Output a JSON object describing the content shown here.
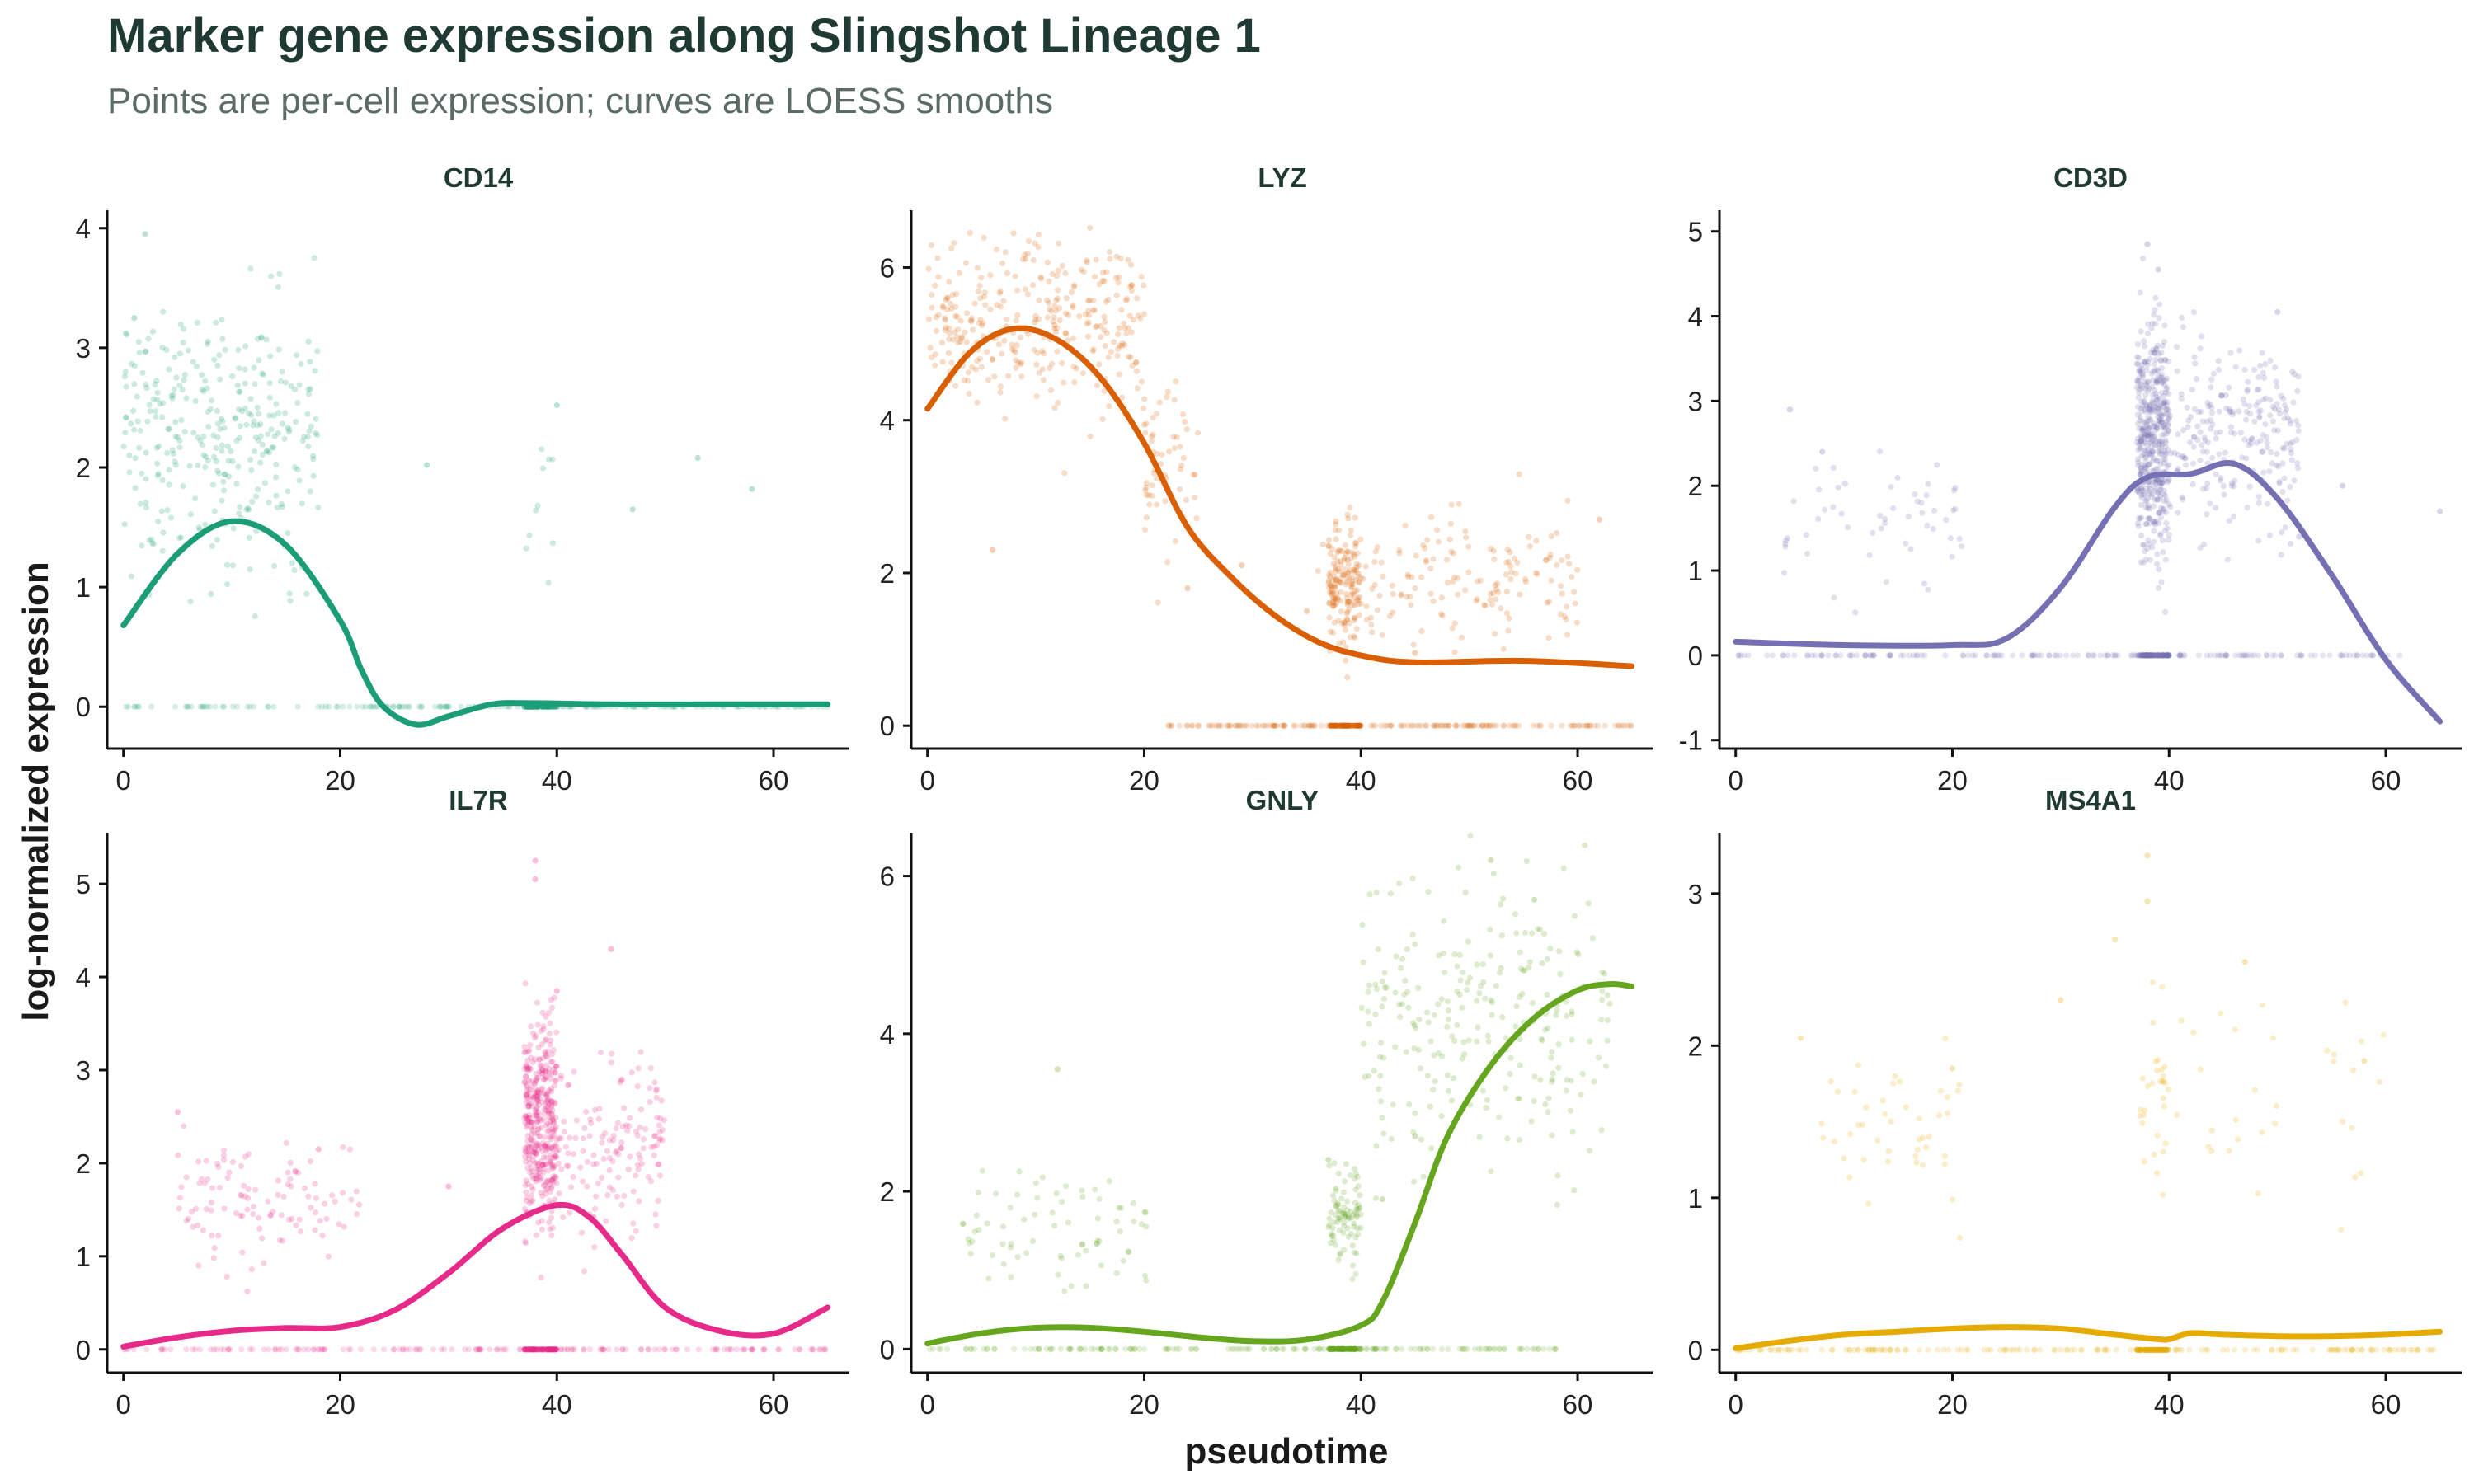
{
  "title": "Marker gene expression along Slingshot Lineage 1",
  "subtitle": "Points are per-cell expression; curves are LOESS smooths",
  "chart_data": {
    "type": "scatter",
    "title": "Marker gene expression along Slingshot Lineage 1",
    "subtitle": "Points are per-cell expression; curves are LOESS smooths",
    "xlabel": "pseudotime",
    "ylabel": "log-normalized expression",
    "xlim": [
      -1.5,
      67
    ],
    "x_ticks": [
      0,
      20,
      40,
      60
    ],
    "grid": false,
    "facets": [
      {
        "name": "CD14",
        "color": "#1b9e77",
        "ylim": [
          -0.35,
          4.15
        ],
        "y_ticks": [
          0,
          1,
          2,
          3,
          4
        ],
        "clusters": [
          {
            "x": [
              0,
              18
            ],
            "y": [
              2.6,
              0.55
            ],
            "x_center": 10,
            "y_center": 2.3,
            "n": 330
          },
          {
            "x": [
              37,
              40
            ],
            "y": [
              1.8,
              0.4
            ],
            "x_center": 38,
            "y_center": 1.6,
            "n": 10
          }
        ],
        "extra_points": [
          [
            2,
            3.95
          ],
          [
            1,
            3.25
          ],
          [
            28,
            2.02
          ],
          [
            40,
            2.52
          ],
          [
            47,
            1.65
          ],
          [
            53,
            2.08
          ],
          [
            58,
            1.82
          ]
        ],
        "zero_range": [
          0,
          65
        ],
        "smooth": {
          "x": [
            0,
            5,
            10,
            15,
            20,
            22,
            24,
            27,
            30,
            34,
            38,
            45,
            55,
            65
          ],
          "y": [
            0.68,
            1.28,
            1.55,
            1.35,
            0.72,
            0.3,
            0.0,
            -0.15,
            -0.08,
            0.02,
            0.03,
            0.02,
            0.02,
            0.02
          ]
        }
      },
      {
        "name": "LYZ",
        "color": "#d95f02",
        "ylim": [
          -0.3,
          6.75
        ],
        "y_ticks": [
          0,
          2,
          4,
          6
        ],
        "clusters": [
          {
            "x": [
              0,
              20
            ],
            "y": [
              5.3,
              0.55
            ],
            "x_center": 10,
            "y_center": 5.3,
            "n": 330
          },
          {
            "x": [
              20,
              25
            ],
            "y": [
              3.4,
              0.6
            ],
            "x_center": 22,
            "y_center": 3.4,
            "n": 60
          },
          {
            "x": [
              37,
              40
            ],
            "y": [
              1.8,
              0.4
            ],
            "x_center": 38,
            "y_center": 1.8,
            "n": 150
          },
          {
            "x": [
              36,
              60
            ],
            "y": [
              1.9,
              0.45
            ],
            "x_center": 48,
            "y_center": 1.9,
            "n": 170
          }
        ],
        "extra_points": [
          [
            6,
            2.3
          ],
          [
            24,
            1.8
          ],
          [
            29,
            2.1
          ],
          [
            35,
            1.5
          ],
          [
            45,
            0.95
          ],
          [
            62,
            2.7
          ]
        ],
        "zero_range": [
          22,
          65
        ],
        "smooth": {
          "x": [
            0,
            4,
            8,
            12,
            16,
            20,
            24,
            28,
            32,
            36,
            40,
            45,
            55,
            65
          ],
          "y": [
            4.15,
            4.9,
            5.2,
            5.05,
            4.55,
            3.7,
            2.6,
            1.95,
            1.45,
            1.1,
            0.92,
            0.83,
            0.85,
            0.78
          ]
        }
      },
      {
        "name": "CD3D",
        "color": "#7570b3",
        "ylim": [
          -1.1,
          5.25
        ],
        "y_ticks": [
          -1,
          0,
          1,
          2,
          3,
          4,
          5
        ],
        "clusters": [
          {
            "x": [
              4,
              21
            ],
            "y": [
              1.6,
              0.35
            ],
            "x_center": 12,
            "y_center": 1.6,
            "n": 55
          },
          {
            "x": [
              37,
              40
            ],
            "y": [
              2.6,
              0.65
            ],
            "x_center": 38,
            "y_center": 2.6,
            "n": 420
          },
          {
            "x": [
              38,
              52
            ],
            "y": [
              2.6,
              0.55
            ],
            "x_center": 45,
            "y_center": 2.6,
            "n": 280
          }
        ],
        "extra_points": [
          [
            38,
            4.85
          ],
          [
            39,
            4.55
          ],
          [
            50,
            4.05
          ],
          [
            5,
            2.9
          ],
          [
            8,
            2.4
          ],
          [
            56,
            2.0
          ],
          [
            65,
            1.7
          ],
          [
            52,
            1.4
          ]
        ],
        "zero_range": [
          0,
          62
        ],
        "smooth": {
          "x": [
            0,
            10,
            20,
            25,
            30,
            35,
            38,
            42,
            46,
            50,
            55,
            60,
            65
          ],
          "y": [
            0.16,
            0.12,
            0.12,
            0.2,
            0.8,
            1.75,
            2.1,
            2.14,
            2.26,
            1.85,
            0.95,
            -0.05,
            -0.78
          ]
        }
      },
      {
        "name": "IL7R",
        "color": "#e7298a",
        "ylim": [
          -0.25,
          5.55
        ],
        "y_ticks": [
          0,
          1,
          2,
          3,
          4,
          5
        ],
        "clusters": [
          {
            "x": [
              5,
              22
            ],
            "y": [
              1.55,
              0.35
            ],
            "x_center": 14,
            "y_center": 1.55,
            "n": 110
          },
          {
            "x": [
              37,
              40
            ],
            "y": [
              2.4,
              0.55
            ],
            "x_center": 38,
            "y_center": 2.4,
            "n": 380
          },
          {
            "x": [
              38,
              50
            ],
            "y": [
              2.2,
              0.5
            ],
            "x_center": 44,
            "y_center": 2.2,
            "n": 170
          }
        ],
        "extra_points": [
          [
            38,
            5.25
          ],
          [
            38,
            5.05
          ],
          [
            45,
            4.3
          ],
          [
            40,
            3.85
          ],
          [
            5,
            2.55
          ],
          [
            18,
            2.15
          ],
          [
            30,
            1.75
          ]
        ],
        "zero_range": [
          0,
          65
        ],
        "smooth": {
          "x": [
            0,
            5,
            10,
            15,
            20,
            25,
            30,
            35,
            40,
            43,
            46,
            50,
            55,
            60,
            65
          ],
          "y": [
            0.03,
            0.13,
            0.2,
            0.23,
            0.24,
            0.42,
            0.82,
            1.3,
            1.55,
            1.42,
            1.02,
            0.45,
            0.2,
            0.17,
            0.45
          ]
        }
      },
      {
        "name": "GNLY",
        "color": "#66a61e",
        "ylim": [
          -0.3,
          6.55
        ],
        "y_ticks": [
          0,
          2,
          4,
          6
        ],
        "clusters": [
          {
            "x": [
              3,
              22
            ],
            "y": [
              1.55,
              0.35
            ],
            "x_center": 13,
            "y_center": 1.55,
            "n": 75
          },
          {
            "x": [
              37,
              40
            ],
            "y": [
              1.65,
              0.35
            ],
            "x_center": 38,
            "y_center": 1.65,
            "n": 90
          },
          {
            "x": [
              40,
              63
            ],
            "y": [
              4.2,
              0.95
            ],
            "x_center": 52,
            "y_center": 4.2,
            "n": 260
          }
        ],
        "extra_points": [
          [
            12,
            3.55
          ],
          [
            37,
            2.4
          ],
          [
            42,
            1.9
          ],
          [
            45,
            2.7
          ],
          [
            52,
            6.2
          ],
          [
            56,
            5.7
          ]
        ],
        "zero_range": [
          0,
          58
        ],
        "smooth": {
          "x": [
            0,
            5,
            10,
            15,
            20,
            25,
            30,
            35,
            40,
            42,
            45,
            48,
            52,
            56,
            60,
            63,
            65
          ],
          "y": [
            0.07,
            0.2,
            0.27,
            0.27,
            0.22,
            0.15,
            0.1,
            0.12,
            0.3,
            0.6,
            1.6,
            2.7,
            3.6,
            4.2,
            4.55,
            4.63,
            4.6
          ]
        }
      },
      {
        "name": "MS4A1",
        "color": "#e6ab02",
        "ylim": [
          -0.15,
          3.4
        ],
        "y_ticks": [
          0,
          1,
          2,
          3
        ],
        "clusters": [
          {
            "x": [
              7,
              21
            ],
            "y": [
              1.45,
              0.28
            ],
            "x_center": 15,
            "y_center": 1.45,
            "n": 45
          },
          {
            "x": [
              37,
              40
            ],
            "y": [
              1.65,
              0.25
            ],
            "x_center": 38,
            "y_center": 1.65,
            "n": 28
          },
          {
            "x": [
              38,
              60
            ],
            "y": [
              1.65,
              0.35
            ],
            "x_center": 48,
            "y_center": 1.65,
            "n": 35
          }
        ],
        "extra_points": [
          [
            38,
            3.25
          ],
          [
            38,
            2.95
          ],
          [
            35,
            2.7
          ],
          [
            30,
            2.3
          ],
          [
            47,
            2.55
          ],
          [
            6,
            2.05
          ],
          [
            58,
            1.9
          ],
          [
            20,
            1.85
          ]
        ],
        "zero_range": [
          0,
          65
        ],
        "smooth": {
          "x": [
            0,
            5,
            10,
            15,
            20,
            25,
            30,
            35,
            39,
            40,
            42,
            45,
            50,
            55,
            60,
            65
          ],
          "y": [
            0.01,
            0.06,
            0.1,
            0.12,
            0.14,
            0.15,
            0.14,
            0.1,
            0.07,
            0.07,
            0.11,
            0.1,
            0.09,
            0.09,
            0.1,
            0.12
          ]
        }
      }
    ]
  }
}
